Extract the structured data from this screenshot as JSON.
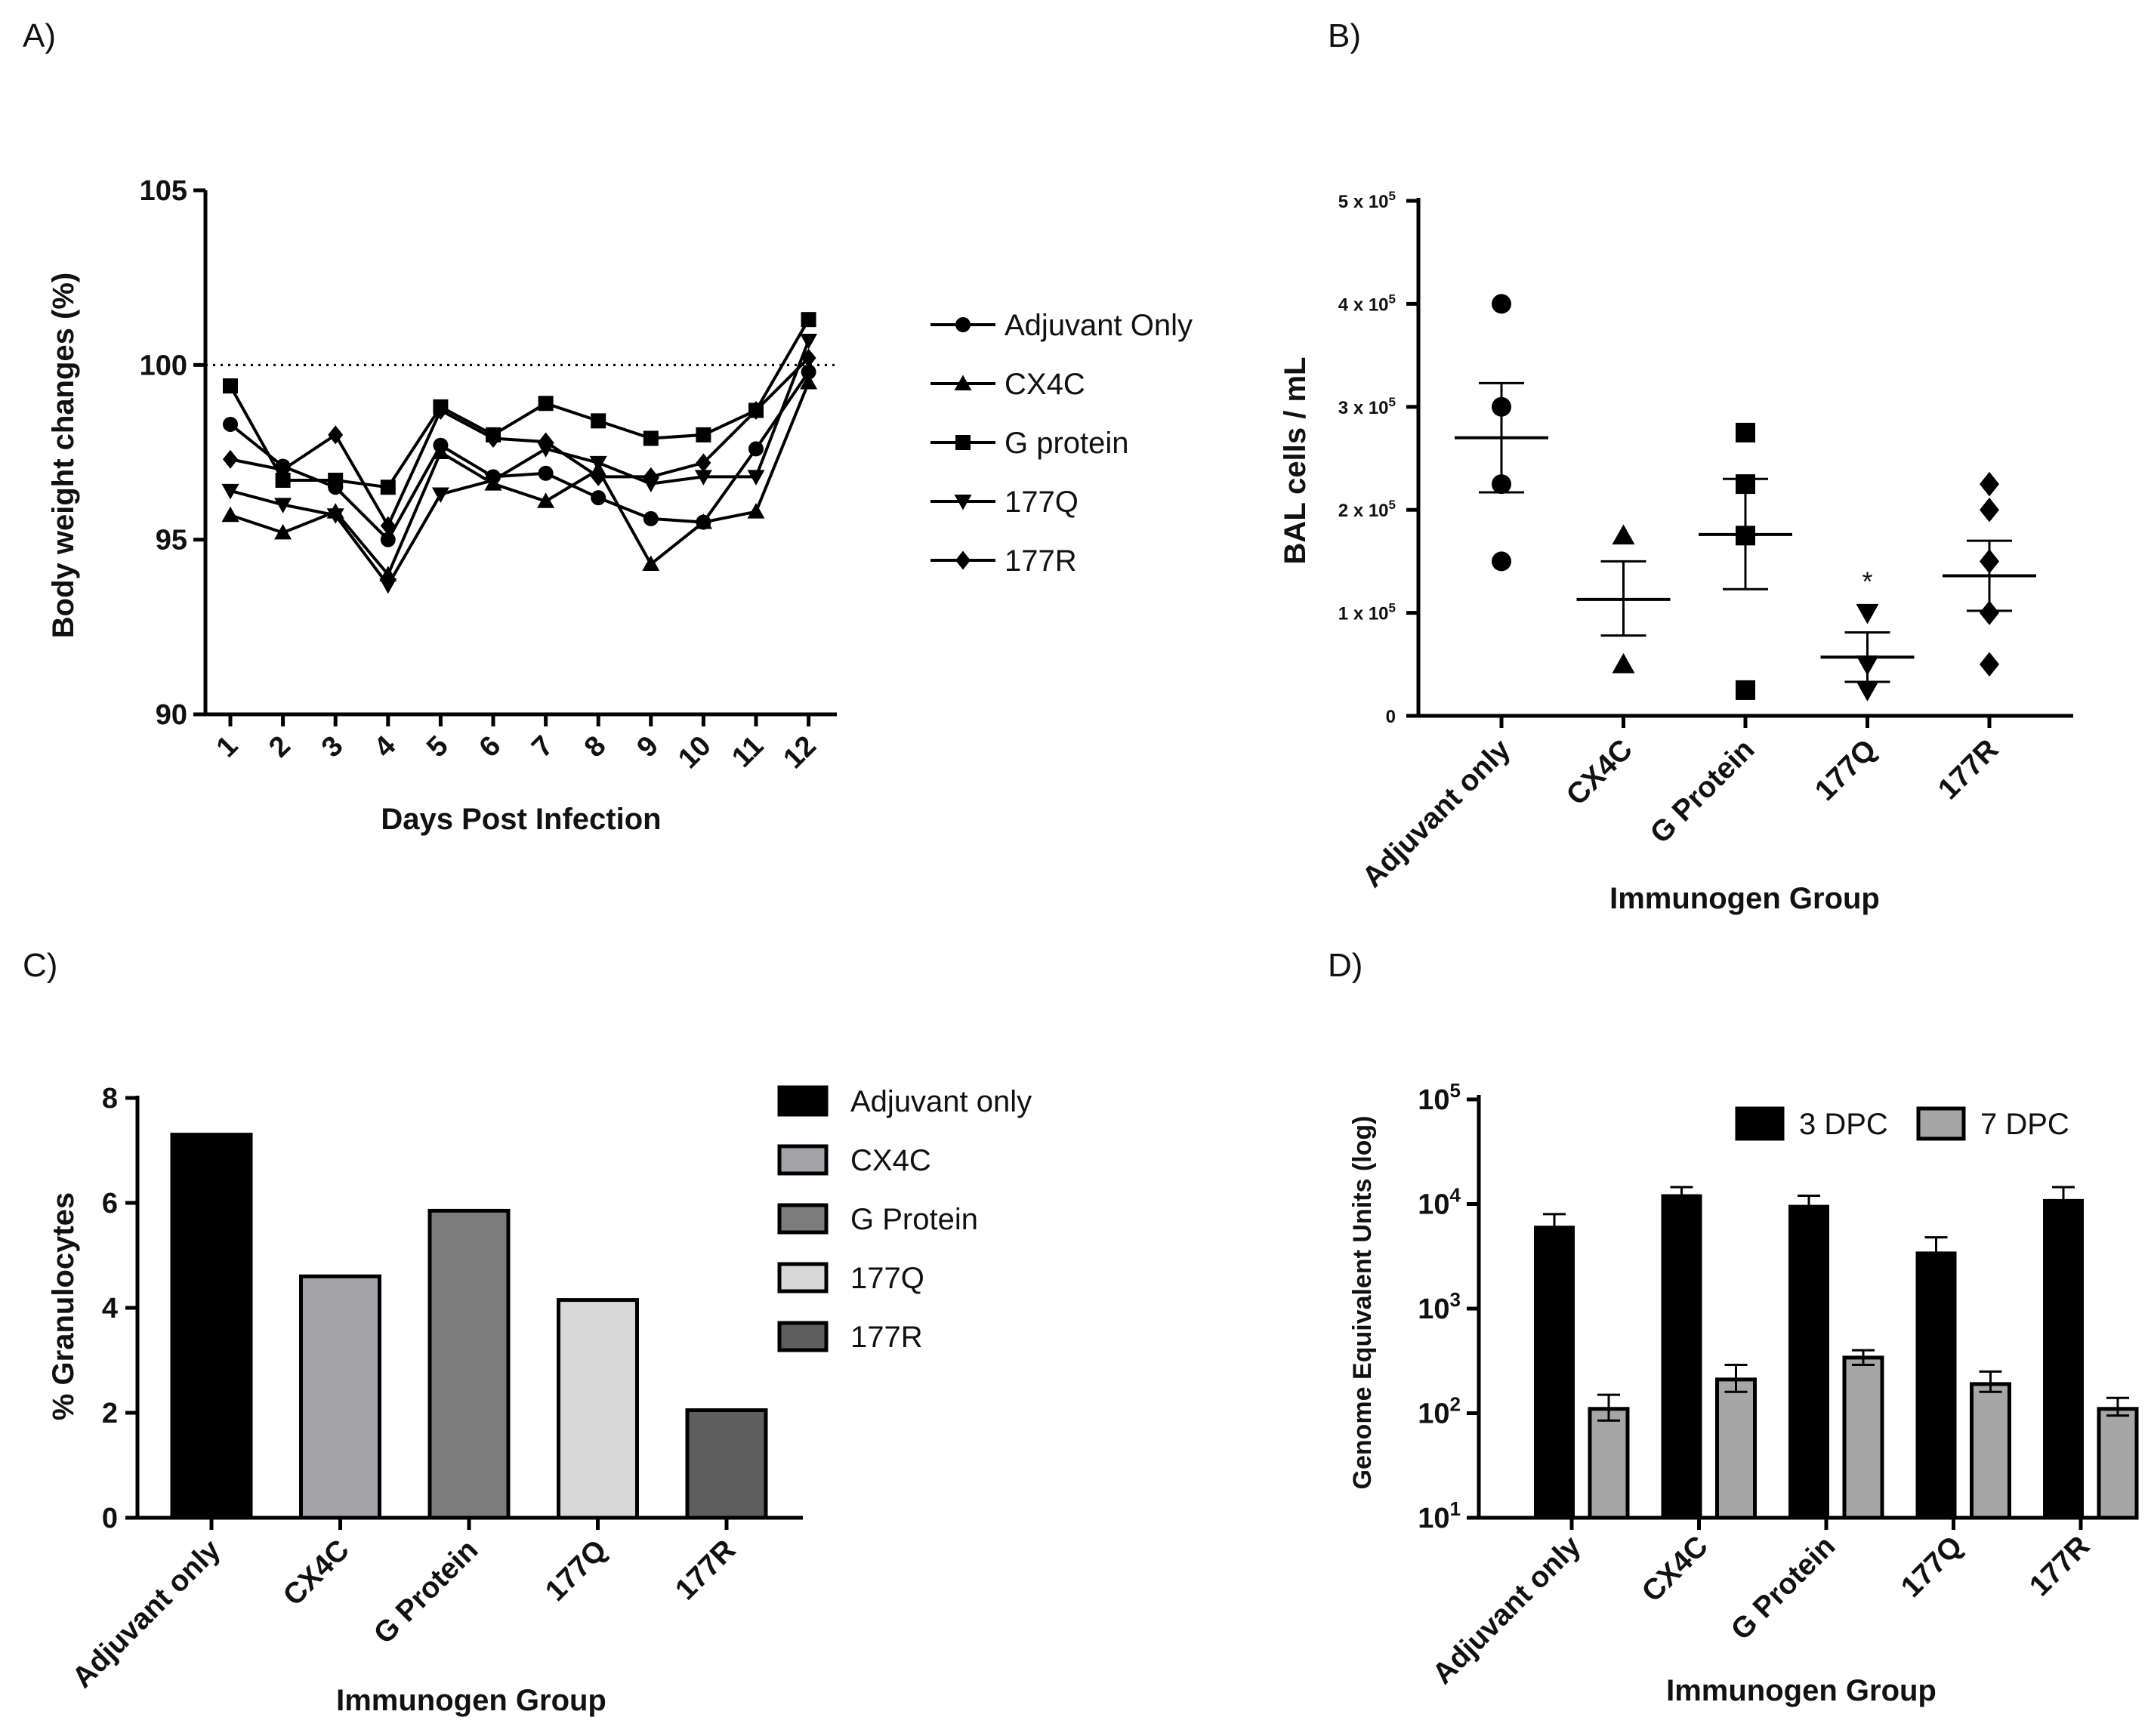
{
  "chart_data": [
    {
      "id": "A",
      "panel_label": "A)",
      "type": "line",
      "ylabel": "Body weight changes (%)",
      "xlabel": "Days Post Infection",
      "x": [
        1,
        2,
        3,
        4,
        5,
        6,
        7,
        8,
        9,
        10,
        11,
        12
      ],
      "x_tick_labels": [
        "1",
        "2",
        "3",
        "4",
        "5",
        "6",
        "7",
        "8",
        "9",
        "10",
        "11",
        "12"
      ],
      "y_ticks": [
        90,
        95,
        100,
        105
      ],
      "y_tick_labels": [
        "90",
        "95",
        "100",
        "105"
      ],
      "ylim": [
        90,
        105
      ],
      "reference_line": 100,
      "legend_position": "right",
      "series": [
        {
          "name": "Adjuvant Only",
          "marker": "circle",
          "values": [
            98.3,
            97.1,
            96.5,
            95.0,
            97.7,
            96.8,
            96.9,
            96.2,
            95.6,
            95.5,
            97.6,
            99.8
          ]
        },
        {
          "name": "CX4C",
          "marker": "triangle-up",
          "values": [
            95.7,
            95.2,
            95.8,
            94.0,
            97.5,
            96.6,
            96.1,
            97.0,
            94.3,
            95.5,
            95.8,
            99.5
          ]
        },
        {
          "name": "G protein",
          "marker": "square",
          "values": [
            99.4,
            96.7,
            96.7,
            96.5,
            98.8,
            98.0,
            98.9,
            98.4,
            97.9,
            98.0,
            98.7,
            101.3
          ]
        },
        {
          "name": "177Q",
          "marker": "triangle-down",
          "values": [
            96.4,
            96.0,
            95.7,
            93.7,
            96.3,
            96.7,
            97.6,
            97.2,
            96.6,
            96.8,
            96.8,
            100.7
          ]
        },
        {
          "name": "177R",
          "marker": "diamond",
          "values": [
            97.3,
            97.0,
            98.0,
            95.4,
            98.7,
            97.9,
            97.8,
            96.8,
            96.8,
            97.2,
            98.7,
            100.2
          ]
        }
      ]
    },
    {
      "id": "B",
      "panel_label": "B)",
      "type": "scatter",
      "ylabel": "BAL cells / mL",
      "xlabel": "Immunogen Group",
      "categories": [
        "Adjuvant only",
        "CX4C",
        "G Protein",
        "177Q",
        "177R"
      ],
      "y_ticks": [
        0,
        100000,
        200000,
        300000,
        400000,
        500000
      ],
      "y_tick_mantissa": [
        "0",
        "1 x 10",
        "2 x 10",
        "3 x 10",
        "4 x 10",
        "5 x 10"
      ],
      "y_tick_exponent": [
        "",
        "5",
        "5",
        "5",
        "5",
        "5"
      ],
      "ylim": [
        0,
        500000
      ],
      "groups": [
        {
          "name": "Adjuvant only",
          "marker": "circle",
          "points": [
            400000,
            300000,
            225000,
            150000
          ],
          "mean": 270000,
          "sem_low": 217000,
          "sem_high": 323000,
          "annotation": ""
        },
        {
          "name": "CX4C",
          "marker": "triangle-up",
          "points": [
            175000,
            50000
          ],
          "mean": 113000,
          "sem_low": 78000,
          "sem_high": 150000,
          "annotation": ""
        },
        {
          "name": "G Protein",
          "marker": "square",
          "points": [
            275000,
            225000,
            175000,
            25000
          ],
          "mean": 176000,
          "sem_low": 123000,
          "sem_high": 230000,
          "annotation": ""
        },
        {
          "name": "177Q",
          "marker": "triangle-down",
          "points": [
            100000,
            50000,
            25000
          ],
          "mean": 57000,
          "sem_low": 33000,
          "sem_high": 81000,
          "annotation": "*"
        },
        {
          "name": "177R",
          "marker": "diamond",
          "points": [
            225000,
            200000,
            150000,
            100000,
            50000
          ],
          "mean": 136000,
          "sem_low": 102000,
          "sem_high": 170000,
          "annotation": ""
        }
      ]
    },
    {
      "id": "C",
      "panel_label": "C)",
      "type": "bar",
      "ylabel": "% Granulocytes",
      "xlabel": "Immunogen Group",
      "categories": [
        "Adjuvant only",
        "CX4C",
        "G Protein",
        "177Q",
        "177R"
      ],
      "values": [
        7.3,
        4.6,
        5.85,
        4.15,
        2.05
      ],
      "colors": [
        "#000000",
        "#a4a4a8",
        "#7d7d7d",
        "#d8d8d8",
        "#5e5e5e"
      ],
      "y_ticks": [
        0,
        2,
        4,
        6,
        8
      ],
      "y_tick_labels": [
        "0",
        "2",
        "4",
        "6",
        "8"
      ],
      "ylim": [
        0,
        8
      ],
      "legend_position": "right",
      "legend": [
        "Adjuvant only",
        "CX4C",
        "G Protein",
        "177Q",
        "177R"
      ]
    },
    {
      "id": "D",
      "panel_label": "D)",
      "type": "bar",
      "yscale": "log",
      "ylabel": "Genome Equivalent Units (log)",
      "xlabel": "Immunogen Group",
      "categories": [
        "Adjuvant only",
        "CX4C",
        "G Protein",
        "177Q",
        "177R"
      ],
      "y_ticks": [
        1,
        2,
        3,
        4,
        5
      ],
      "y_tick_base": "10",
      "y_tick_exponent": [
        "1",
        "2",
        "3",
        "4",
        "5"
      ],
      "ylim": [
        10,
        100000
      ],
      "legend_position": "top-right",
      "series": [
        {
          "name": "3 DPC",
          "color": "#000000",
          "values": [
            6000,
            12000,
            9500,
            3400,
            10800
          ],
          "err_high": [
            8000,
            14500,
            12000,
            4800,
            14500
          ]
        },
        {
          "name": "7 DPC",
          "color": "#a6a6a6",
          "values": [
            110,
            210,
            340,
            190,
            110
          ],
          "err_low": [
            85,
            160,
            290,
            160,
            95
          ],
          "err_high": [
            150,
            290,
            400,
            250,
            140
          ]
        }
      ]
    }
  ]
}
